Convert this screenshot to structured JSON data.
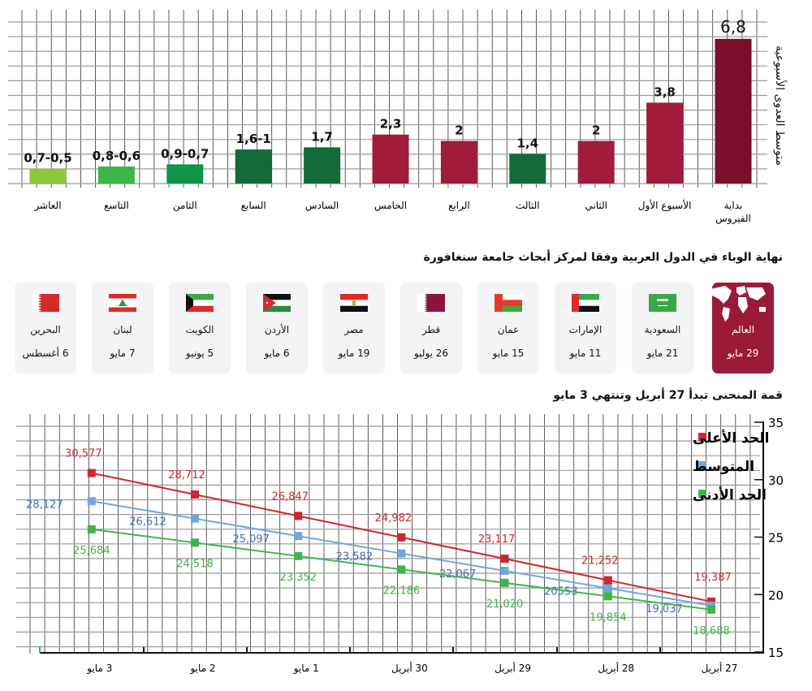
{
  "chart_data": [
    {
      "type": "bar",
      "ylabel": "متوسط العدوى الأسبوعية",
      "categories": [
        "بداية الفيروس",
        "الأسبوع الأول",
        "الثاني",
        "الثالث",
        "الرابع",
        "الخامس",
        "السادس",
        "السابع",
        "الثامن",
        "التاسع",
        "العاشر"
      ],
      "values": [
        6.8,
        3.8,
        2,
        1.4,
        2,
        2.3,
        1.7,
        1.6,
        0.9,
        0.8,
        0.7
      ],
      "value_labels": [
        "6,8",
        "3,8",
        "2",
        "1,4",
        "2",
        "2,3",
        "1,7",
        "1,6-1",
        "0,9-0,7",
        "0,8-0,6",
        "0,7-0,5"
      ],
      "colors": [
        "#7a0e2c",
        "#a01c3a",
        "#a01c3a",
        "#146b3a",
        "#a01c3a",
        "#a01c3a",
        "#146b3a",
        "#146b3a",
        "#0f9447",
        "#3db54a",
        "#8dc63f"
      ],
      "ylim": [
        0,
        7.5
      ],
      "grid": true
    },
    {
      "type": "line",
      "title": "قمة المنحنى تبدأ 27 أبريل وتنتهي 3 مايو",
      "categories": [
        "27 أبريل",
        "28 أبريل",
        "29 أبريل",
        "30 أبريل",
        "1 مايو",
        "2 مايو",
        "3 مايو"
      ],
      "ylim": [
        15,
        35
      ],
      "yticks": [
        "15",
        "20",
        "25",
        "30",
        "35"
      ],
      "grid": true,
      "legend_position": "top-right",
      "series": [
        {
          "name": "الحد الأعلى",
          "color": "#d0262f",
          "values": [
            19.387,
            21.252,
            23.117,
            24.982,
            26.847,
            28.712,
            30.577
          ],
          "labels": [
            "19,387",
            "21,252",
            "23,117",
            "24,982",
            "26,847",
            "28,712",
            "30,577"
          ]
        },
        {
          "name": "المتوسط",
          "color": "#6fa8dc",
          "label_color": "#3b6fb6",
          "values": [
            19.037,
            20.553,
            22.067,
            23.582,
            25.097,
            26.612,
            28.127
          ],
          "labels": [
            "19,037",
            "20553",
            "22,067",
            "23,582",
            "25,097",
            "26,612",
            "28,127"
          ]
        },
        {
          "name": "الحد الأدنى",
          "color": "#3db54a",
          "values": [
            18.688,
            19.854,
            21.02,
            22.186,
            23.352,
            24.518,
            25.684
          ],
          "labels": [
            "18,688",
            "19,854",
            "21,020",
            "22,186",
            "23,352",
            "24,518",
            "25,684"
          ]
        }
      ]
    }
  ],
  "countries": {
    "title": "نهاية الوباء في الدول العربية وفقا لمركز أبحاث جامعة سنغافورة",
    "items": [
      {
        "name": "العالم",
        "date": "29 مايو",
        "icon": "world-map-icon",
        "highlight": true
      },
      {
        "name": "السعودية",
        "date": "21 مايو",
        "icon": "saudi-flag-icon"
      },
      {
        "name": "الإمارات",
        "date": "11 مايو",
        "icon": "uae-flag-icon"
      },
      {
        "name": "عمان",
        "date": "15 مايو",
        "icon": "oman-flag-icon"
      },
      {
        "name": "قطر",
        "date": "26 يوليو",
        "icon": "qatar-flag-icon"
      },
      {
        "name": "مصر",
        "date": "19 مايو",
        "icon": "egypt-flag-icon"
      },
      {
        "name": "الأردن",
        "date": "6 مايو",
        "icon": "jordan-flag-icon"
      },
      {
        "name": "الكويت",
        "date": "5 يونيو",
        "icon": "kuwait-flag-icon"
      },
      {
        "name": "لبنان",
        "date": "7 مايو",
        "icon": "lebanon-flag-icon"
      },
      {
        "name": "البحرين",
        "date": "6 أغسطس",
        "icon": "bahrain-flag-icon"
      }
    ]
  }
}
